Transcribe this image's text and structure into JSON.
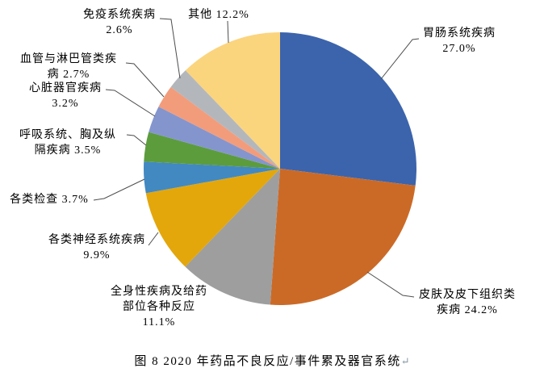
{
  "figure": {
    "caption": "图 8  2020 年药品不良反应/事件累及器官系统",
    "paragraph_mark": "↵"
  },
  "chart_data": {
    "type": "pie",
    "title": "图 8  2020 年药品不良反应/事件累及器官系统",
    "unit": "%",
    "start_angle": "12 o'clock",
    "direction": "clockwise",
    "legend_position": "none (callout labels with leader lines)",
    "slices": [
      {
        "name": "胃肠系统疾病",
        "value": 27.0,
        "color": "#3C64AC",
        "label_lines": [
          "胃肠系统疾病",
          "27.0%"
        ]
      },
      {
        "name": "皮肤及皮下组织类疾病",
        "value": 24.2,
        "color": "#CB6A27",
        "label_lines": [
          "皮肤及皮下组织类",
          "疾病 24.2%"
        ]
      },
      {
        "name": "全身性疾病及给药部位各种反应",
        "value": 11.1,
        "color": "#9E9E9E",
        "label_lines": [
          "全身性疾病及给药",
          "部位各种反应",
          "11.1%"
        ]
      },
      {
        "name": "各类神经系统疾病",
        "value": 9.9,
        "color": "#E3A70C",
        "label_lines": [
          "各类神经系统疾病",
          "9.9%"
        ]
      },
      {
        "name": "各类检查",
        "value": 3.7,
        "color": "#4289C2",
        "label_lines": [
          "各类检查 3.7%"
        ]
      },
      {
        "name": "呼吸系统、胸及纵隔疾病",
        "value": 3.5,
        "color": "#5C9C3D",
        "label_lines": [
          "呼吸系统、胸及纵",
          "隔疾病 3.5%"
        ]
      },
      {
        "name": "心脏器官疾病",
        "value": 3.2,
        "color": "#8495CE",
        "label_lines": [
          "心脏器官疾病",
          "3.2%"
        ]
      },
      {
        "name": "血管与淋巴管类疾病",
        "value": 2.7,
        "color": "#F29C7C",
        "label_lines": [
          "血管与淋巴管类疾",
          "病 2.7%"
        ]
      },
      {
        "name": "免疫系统疾病",
        "value": 2.6,
        "color": "#B3B7BC",
        "label_lines": [
          "免疫系统疾病",
          "2.6%"
        ]
      },
      {
        "name": "其他",
        "value": 12.2,
        "color": "#FBD47E",
        "label_lines": [
          "其他 12.2%"
        ]
      }
    ]
  }
}
